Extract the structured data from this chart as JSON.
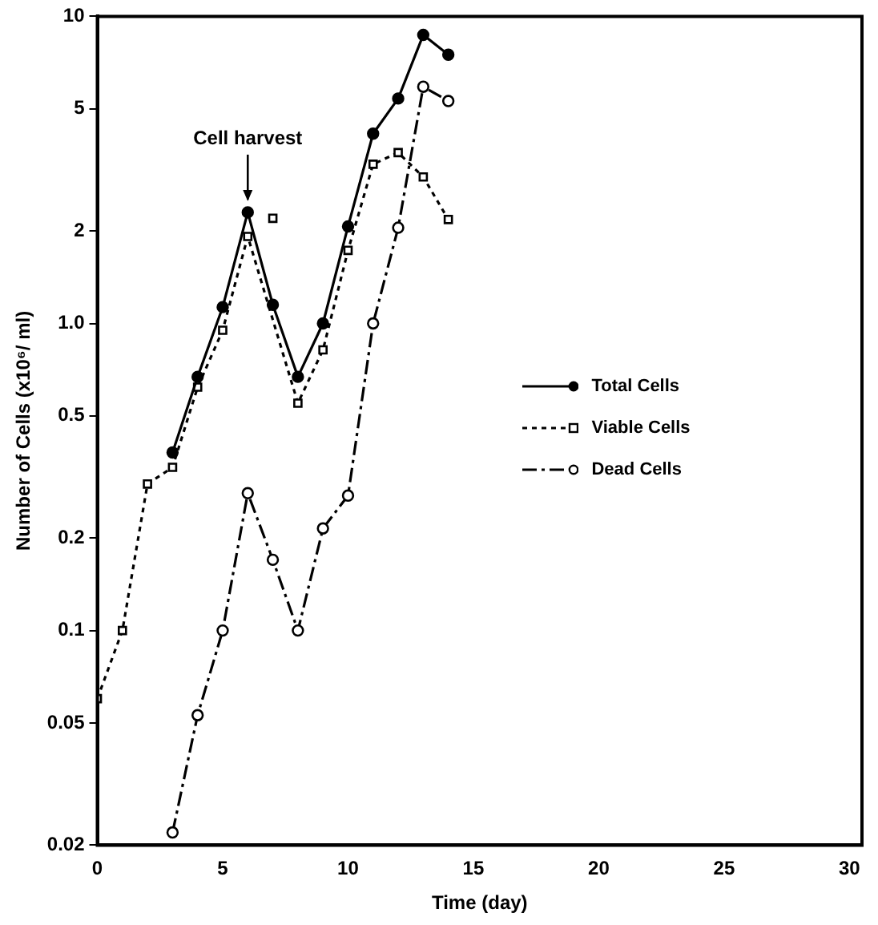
{
  "chart_data": {
    "type": "line",
    "xlabel": "Time (day)",
    "ylabel": "Number of Cells (x10⁶/ ml)",
    "log": "y",
    "xlim": [
      0,
      30.5
    ],
    "xticks": [
      0,
      5,
      10,
      15,
      20,
      25,
      30
    ],
    "ylim": [
      0.02,
      10
    ],
    "yticks": [
      0.02,
      0.05,
      0.1,
      0.2,
      0.5,
      {
        "value": 1,
        "label": "1.0"
      },
      2,
      5,
      10
    ],
    "grid": false,
    "legend": "right",
    "series": [
      {
        "name": "Total Cells",
        "color": "#000000",
        "marker": "circle",
        "line_style": "solid",
        "x": [
          3,
          4,
          5,
          6,
          7,
          8,
          9,
          10,
          11,
          12,
          13,
          14
        ],
        "values": [
          0.38,
          0.67,
          1.13,
          2.3,
          1.15,
          0.67,
          1.0,
          2.07,
          4.15,
          5.4,
          8.7,
          7.5
        ]
      },
      {
        "name": "Viable Cells",
        "color": "#000000",
        "marker": "square",
        "line_style": "dotted",
        "x": [
          0,
          1,
          2,
          3,
          4,
          5,
          6,
          8,
          9,
          10,
          11,
          12,
          13,
          14
        ],
        "values": [
          0.06,
          0.1,
          0.3,
          0.34,
          0.62,
          0.95,
          1.92,
          0.55,
          0.82,
          1.73,
          3.3,
          3.6,
          3.0,
          2.18
        ]
      },
      {
        "type": "scatter",
        "color": "#000000",
        "marker": "square",
        "x": [
          7
        ],
        "values": [
          2.2
        ]
      },
      {
        "name": "Dead Cells",
        "color": "#000000",
        "marker": "circle",
        "line_style": "dashed",
        "x": [
          3,
          4,
          5,
          6,
          7,
          8,
          9,
          10,
          11,
          12,
          13,
          14
        ],
        "values": [
          0.022,
          0.053,
          0.1,
          0.28,
          0.17,
          0.1,
          0.215,
          0.275,
          1.0,
          2.05,
          5.9,
          5.3
        ]
      }
    ],
    "annotations": [
      {
        "text": "Cell harvest",
        "x": 6,
        "y": 2.3
      }
    ]
  }
}
